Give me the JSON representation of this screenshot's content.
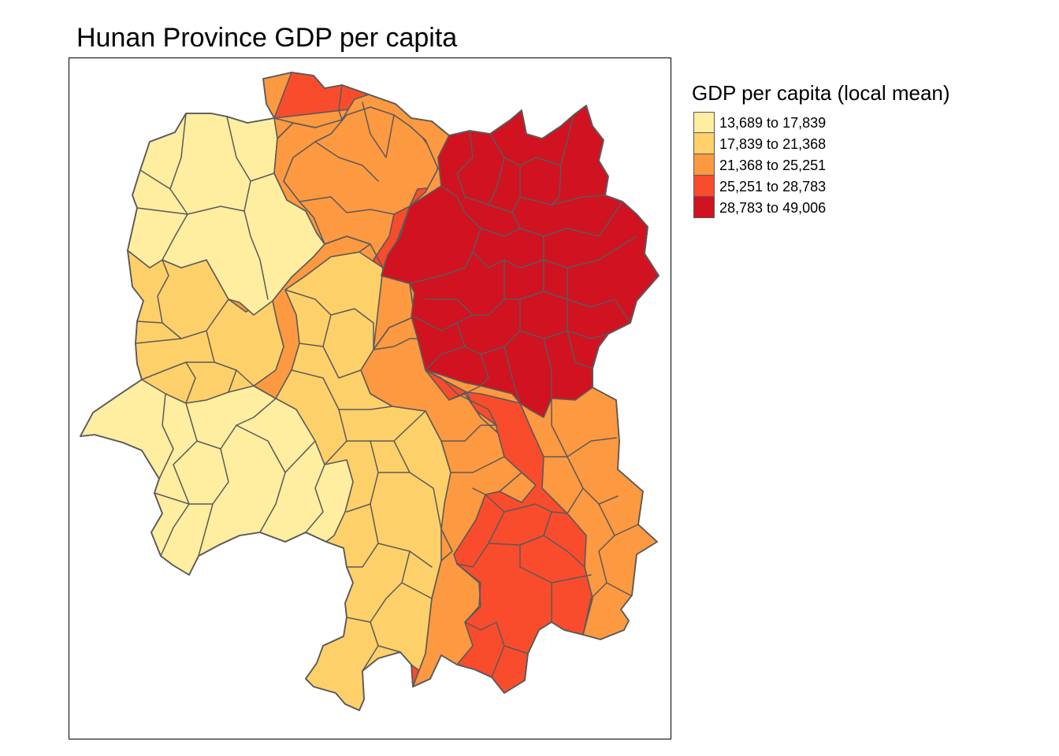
{
  "title": "Hunan Province GDP per capita",
  "legend": {
    "title": "GDP per capita (local mean)",
    "classes": [
      {
        "label": "13,689 to 17,839",
        "color": "#FFEDA0"
      },
      {
        "label": "17,839 to 21,368",
        "color": "#FED06A"
      },
      {
        "label": "21,368 to 25,251",
        "color": "#FD9940"
      },
      {
        "label": "25,251 to 28,783",
        "color": "#F84C2C"
      },
      {
        "label": "28,783 to 49,006",
        "color": "#D11220"
      }
    ]
  },
  "border_color": "#5a5a5a",
  "frame_color": "#000000"
}
